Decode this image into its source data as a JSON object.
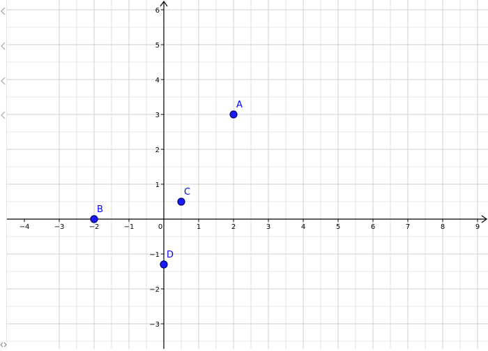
{
  "graph": {
    "x_range": [
      -4.3,
      9.1
    ],
    "y_range": [
      -3.62,
      6.22
    ],
    "x_tick_labels": [
      "−4",
      "−3",
      "−2",
      "−1",
      "0",
      "1",
      "2",
      "3",
      "4",
      "5",
      "6",
      "7",
      "8",
      "9"
    ],
    "x_tick_values": [
      -4,
      -3,
      -2,
      -1,
      0,
      1,
      2,
      3,
      4,
      5,
      6,
      7,
      8,
      9
    ],
    "y_tick_labels": [
      "−3",
      "−2",
      "−1",
      "1",
      "2",
      "3",
      "4",
      "5",
      "6"
    ],
    "y_tick_values": [
      -3,
      -2,
      -1,
      1,
      2,
      3,
      4,
      5,
      6
    ],
    "grid": true,
    "colors": {
      "grid": "#cfcfcf",
      "axis": "#000000",
      "point_fill": "#1a1aff",
      "point_stroke": "#000066",
      "label": "#0000ff"
    }
  },
  "points": [
    {
      "name": "A",
      "x": 2,
      "y": 3
    },
    {
      "name": "B",
      "x": -2,
      "y": 0
    },
    {
      "name": "C",
      "x": 0.5,
      "y": 0.5
    },
    {
      "name": "D",
      "x": 0,
      "y": -1.3
    }
  ],
  "left_panel": {
    "toggle_icons": [
      "chevron-left-icon",
      "chevron-left-icon",
      "chevron-left-icon",
      "chevron-left-icon"
    ],
    "corner_icon": "chevron-left-right-icon"
  }
}
